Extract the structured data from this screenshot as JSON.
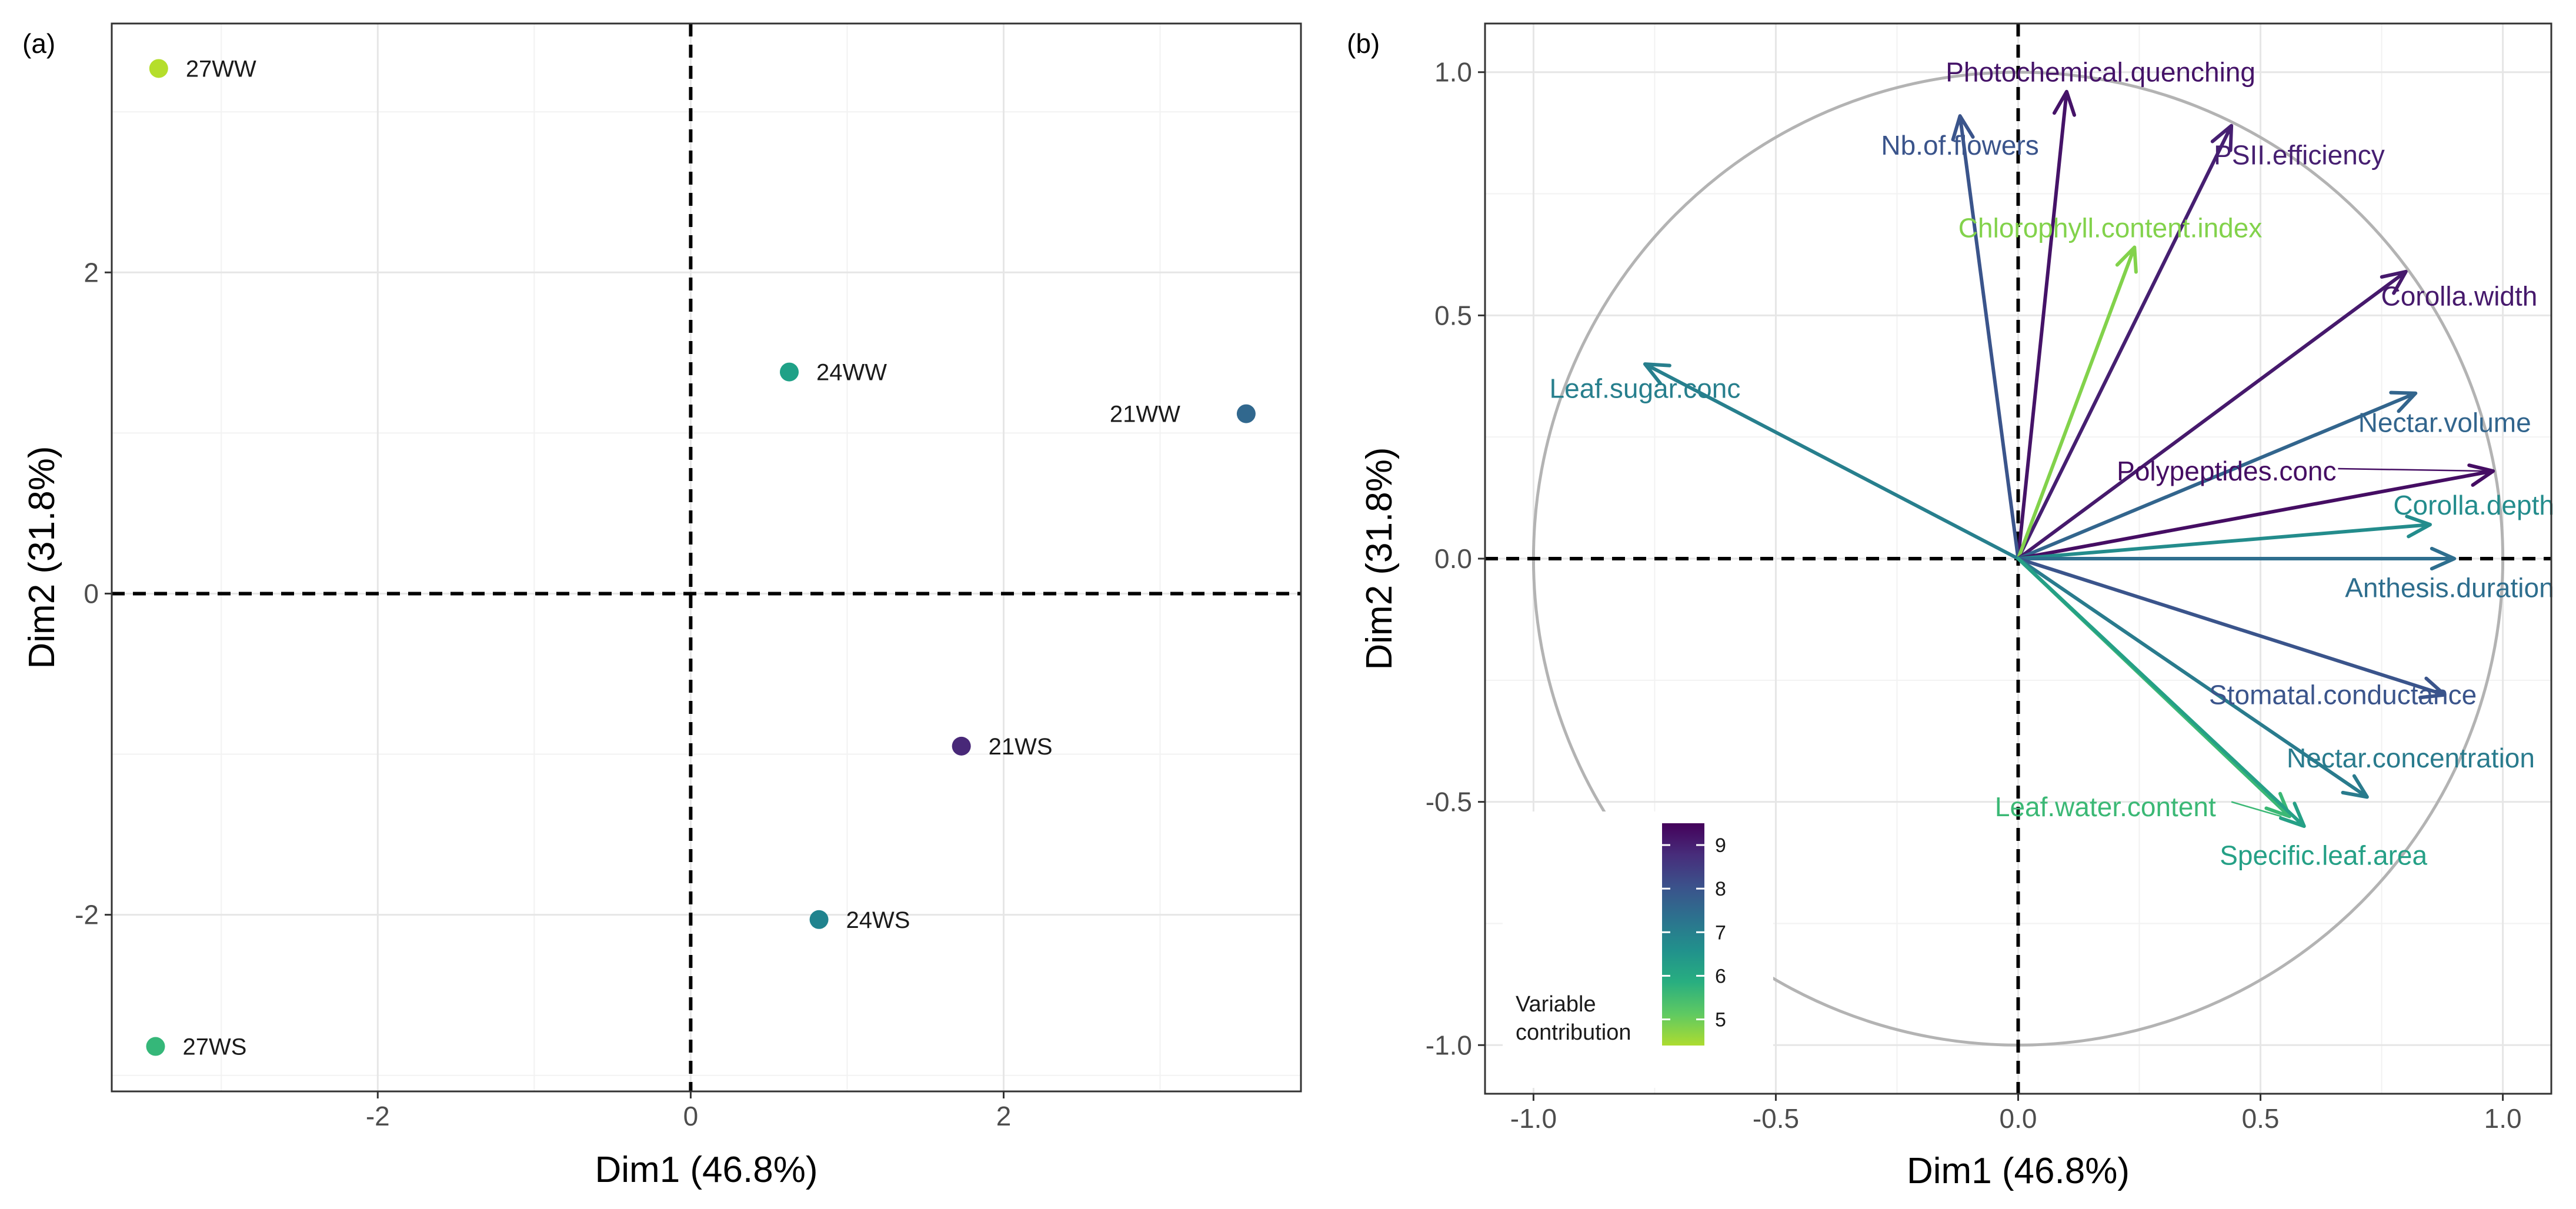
{
  "chart_data": [
    {
      "type": "scatter",
      "panel_label": "(a)",
      "xlabel": "Dim1 (46.8%)",
      "ylabel": "Dim2 (31.8%)",
      "xlim": [
        -3.7,
        3.9
      ],
      "ylim": [
        -3.1,
        3.55
      ],
      "x_ticks": [
        -2,
        0,
        2
      ],
      "x_tick_labels": [
        "-2",
        "0",
        "2"
      ],
      "y_ticks": [
        -2,
        0,
        2
      ],
      "y_tick_labels": [
        "-2",
        "0",
        "2"
      ],
      "grid": true,
      "reference_lines": {
        "x": 0,
        "y": 0
      },
      "points": [
        {
          "label": "27WW",
          "x": -3.4,
          "y": 3.27,
          "color": "#b5de2b",
          "label_side": "right"
        },
        {
          "label": "24WW",
          "x": 0.63,
          "y": 1.38,
          "color": "#1fa187",
          "label_side": "right"
        },
        {
          "label": "21WW",
          "x": 3.55,
          "y": 1.12,
          "color": "#31688e",
          "label_side": "left"
        },
        {
          "label": "21WS",
          "x": 1.73,
          "y": -0.95,
          "color": "#482878",
          "label_side": "right"
        },
        {
          "label": "24WS",
          "x": 0.82,
          "y": -2.03,
          "color": "#20838e",
          "label_side": "right"
        },
        {
          "label": "27WS",
          "x": -3.42,
          "y": -2.82,
          "color": "#35b779",
          "label_side": "right"
        }
      ]
    },
    {
      "type": "scatter",
      "subtype": "correlation-circle",
      "panel_label": "(b)",
      "xlabel": "Dim1 (46.8%)",
      "ylabel": "Dim2 (31.8%)",
      "xlim": [
        -1.1,
        1.1
      ],
      "ylim": [
        -1.1,
        1.1
      ],
      "x_ticks": [
        -1.0,
        -0.5,
        0.0,
        0.5,
        1.0
      ],
      "x_tick_labels": [
        "-1.0",
        "-0.5",
        "0.0",
        "0.5",
        "1.0"
      ],
      "y_ticks": [
        -1.0,
        -0.5,
        0.0,
        0.5,
        1.0
      ],
      "y_tick_labels": [
        "-1.0",
        "-0.5",
        "0.0",
        "0.5",
        "1.0"
      ],
      "grid": true,
      "unit_circle": true,
      "reference_lines": {
        "x": 0,
        "y": 0
      },
      "variables": [
        {
          "name": "Photochemical.quenching",
          "x": 0.1,
          "y": 0.96,
          "contribution": 9.2,
          "label_x": 0.17,
          "label_y": 1.0
        },
        {
          "name": "Nb.of.flowers",
          "x": -0.12,
          "y": 0.91,
          "contribution": 8.0,
          "label_x": -0.12,
          "label_y": 0.85
        },
        {
          "name": "PSII.efficiency",
          "x": 0.44,
          "y": 0.89,
          "contribution": 9.0,
          "label_x": 0.58,
          "label_y": 0.83
        },
        {
          "name": "Chlorophyll.content.index",
          "x": 0.24,
          "y": 0.64,
          "contribution": 4.8,
          "label_x": 0.19,
          "label_y": 0.68
        },
        {
          "name": "Corolla.width",
          "x": 0.8,
          "y": 0.59,
          "contribution": 9.1,
          "label_x": 0.91,
          "label_y": 0.54
        },
        {
          "name": "Leaf.sugar.conc",
          "x": -0.77,
          "y": 0.4,
          "contribution": 7.0,
          "label_x": -0.77,
          "label_y": 0.35
        },
        {
          "name": "Nectar.volume",
          "x": 0.82,
          "y": 0.34,
          "contribution": 7.6,
          "label_x": 0.88,
          "label_y": 0.28
        },
        {
          "name": "Polypeptides.conc",
          "x": 0.98,
          "y": 0.18,
          "contribution": 9.3,
          "label_x": 0.43,
          "label_y": 0.18
        },
        {
          "name": "Corolla.depth",
          "x": 0.85,
          "y": 0.07,
          "contribution": 6.7,
          "label_x": 0.94,
          "label_y": 0.11
        },
        {
          "name": "Anthesis.duration",
          "x": 0.9,
          "y": 0.0,
          "contribution": 7.4,
          "label_x": 0.89,
          "label_y": -0.06
        },
        {
          "name": "Stomatal.conductance",
          "x": 0.88,
          "y": -0.28,
          "contribution": 8.0,
          "label_x": 0.67,
          "label_y": -0.28
        },
        {
          "name": "Nectar.concentration",
          "x": 0.72,
          "y": -0.49,
          "contribution": 7.1,
          "label_x": 0.81,
          "label_y": -0.41
        },
        {
          "name": "Leaf.water.content",
          "x": 0.56,
          "y": -0.53,
          "contribution": 5.6,
          "label_x": 0.18,
          "label_y": -0.51
        },
        {
          "name": "Specific.leaf.area",
          "x": 0.59,
          "y": -0.55,
          "contribution": 6.2,
          "label_x": 0.63,
          "label_y": -0.61
        }
      ],
      "legend": {
        "title": "Variable\ncontribution",
        "range": [
          4.4,
          9.5
        ],
        "ticks": [
          5,
          6,
          7,
          8,
          9
        ],
        "tick_labels": [
          "5",
          "6",
          "7",
          "8",
          "9"
        ],
        "placement": "bottom-left"
      }
    }
  ],
  "colors": {
    "viridis": [
      "#44015a",
      "#472d7b",
      "#3b528b",
      "#2c728e",
      "#21918c",
      "#28ae80",
      "#5ec962",
      "#addc30"
    ],
    "circle": "#b3b3b3",
    "border": "#333333"
  }
}
